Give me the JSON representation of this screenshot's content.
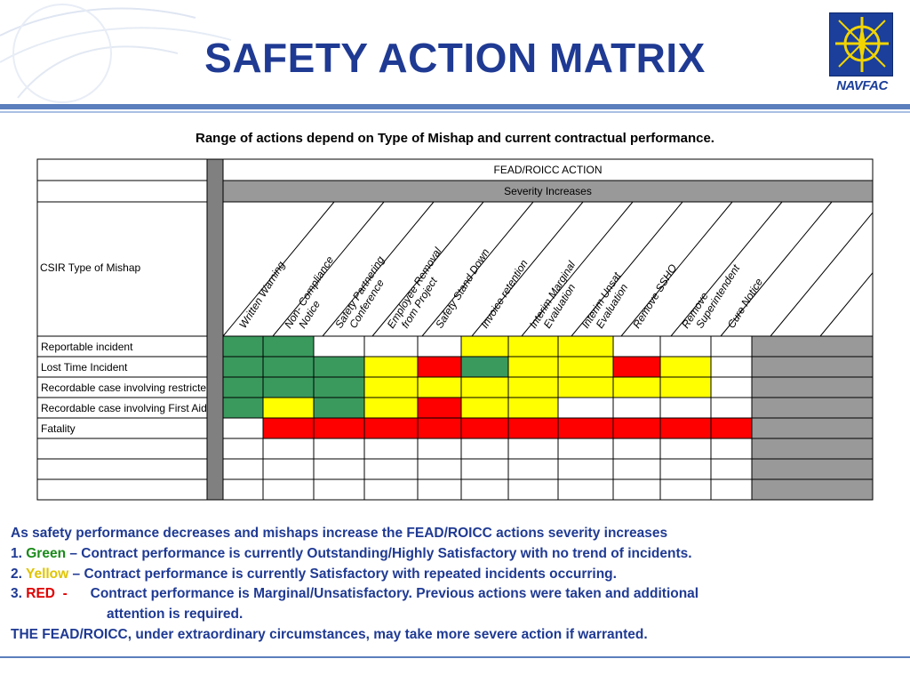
{
  "title": "SAFETY ACTION MATRIX",
  "logo": {
    "text": "NAVFAC",
    "icon": "navfac-compass-icon",
    "color": "#1b3f9a"
  },
  "subtitle": "Range of actions depend on Type of Mishap and current contractual performance.",
  "matrix": {
    "top_header": "FEAD/ROICC ACTION",
    "severity_header": "Severity Increases",
    "corner_label": "CSIR Type of Mishap",
    "columns": [
      [
        "Written  Warning"
      ],
      [
        "Non- Compliance",
        "Notice"
      ],
      [
        "Safety Partnering",
        "Conference"
      ],
      [
        "Employee Removal",
        "from Project"
      ],
      [
        "Safety Stand Down"
      ],
      [
        "Invoice retention"
      ],
      [
        "Interim Marginal",
        "Evaluation"
      ],
      [
        "Interim Unsat",
        "Evaluation"
      ],
      [
        "Remove SSHO"
      ],
      [
        "Remove",
        "Superintendent"
      ],
      [
        "Cure Notice"
      ]
    ],
    "rows": [
      {
        "label": "Reportable incident",
        "cells": [
          "G",
          "G",
          "W",
          "W",
          "W",
          "Y",
          "Y",
          "Y",
          "W",
          "W",
          "W"
        ]
      },
      {
        "label": "Lost Time Incident",
        "cells": [
          "G",
          "G",
          "G",
          "Y",
          "R",
          "G",
          "Y",
          "Y",
          "R",
          "Y",
          "W"
        ]
      },
      {
        "label": "Recordable case involving restricted duty",
        "cells": [
          "G",
          "G",
          "G",
          "Y",
          "Y",
          "Y",
          "Y",
          "Y",
          "Y",
          "Y",
          "W"
        ]
      },
      {
        "label": "Recordable case involving First Aid",
        "cells": [
          "G",
          "Y",
          "G",
          "Y",
          "R",
          "Y",
          "Y",
          "W",
          "W",
          "W",
          "W"
        ]
      },
      {
        "label": "Fatality",
        "cells": [
          "W",
          "R",
          "R",
          "R",
          "R",
          "R",
          "R",
          "R",
          "R",
          "R",
          "R"
        ]
      },
      {
        "label": "",
        "cells": [
          "W",
          "W",
          "W",
          "W",
          "W",
          "W",
          "W",
          "W",
          "W",
          "W",
          "W"
        ]
      },
      {
        "label": "",
        "cells": [
          "W",
          "W",
          "W",
          "W",
          "W",
          "W",
          "W",
          "W",
          "W",
          "W",
          "W"
        ]
      },
      {
        "label": "",
        "cells": [
          "W",
          "W",
          "W",
          "W",
          "W",
          "W",
          "W",
          "W",
          "W",
          "W",
          "W"
        ]
      }
    ],
    "colors": {
      "G": "#3a9a5e",
      "Y": "#ffff00",
      "R": "#ff0000",
      "W": "#ffffff",
      "grey": "#999999",
      "dark_grey": "#808080"
    }
  },
  "notes": {
    "line1": "As safety performance decreases and mishaps increase the FEAD/ROICC actions severity increases",
    "item1_num": "1.",
    "item1_word": "Green",
    "item1_text": " –  Contract performance is currently Outstanding/Highly Satisfactory with no trend of incidents.",
    "item2_num": "2.",
    "item2_word": "Yellow",
    "item2_text": " – Contract performance is currently Satisfactory with repeated incidents occurring.",
    "item3_num": "3.",
    "item3_word": "RED",
    "item3_dash": "-",
    "item3_text": "Contract performance is Marginal/Unsatisfactory. Previous actions were taken and additional",
    "item3_cont": "attention is required.",
    "line_last": "THE FEAD/ROICC, under extraordinary circumstances, may take more severe action if warranted."
  }
}
